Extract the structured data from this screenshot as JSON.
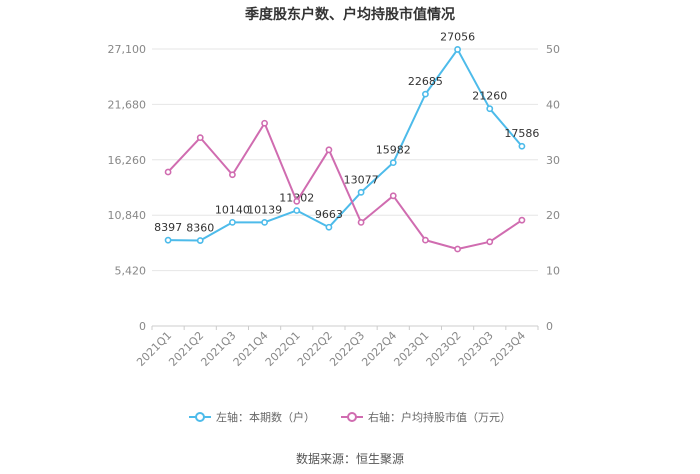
{
  "chart_data": {
    "type": "line",
    "title": "季度股东户数、户均持股市值情况",
    "categories": [
      "2021Q1",
      "2021Q2",
      "2021Q3",
      "2021Q4",
      "2022Q1",
      "2022Q2",
      "2022Q3",
      "2022Q4",
      "2023Q1",
      "2023Q2",
      "2023Q3",
      "2023Q4"
    ],
    "left_axis": {
      "ticks": [
        "0",
        "5,420",
        "10,840",
        "16,260",
        "21,680",
        "27,100"
      ],
      "ylim": [
        0,
        27100
      ]
    },
    "right_axis": {
      "ticks": [
        "0",
        "10",
        "20",
        "30",
        "40",
        "50"
      ],
      "ylim": [
        0,
        50
      ]
    },
    "series": [
      {
        "name": "左轴：本期数（户）",
        "axis": "left",
        "color": "#4dbbea",
        "values": [
          8397,
          8360,
          10140,
          10139,
          11302,
          9663,
          13077,
          15982,
          22685,
          27056,
          21260,
          17586
        ],
        "labels": [
          "8397",
          "8360",
          "10140",
          "10139",
          "11302",
          "9663",
          "13077",
          "15982",
          "22685",
          "27056",
          "21260",
          "17586"
        ]
      },
      {
        "name": "右轴：户均持股市值（万元）",
        "axis": "right",
        "color": "#d06cb0",
        "values": [
          27.8,
          34.0,
          27.3,
          36.6,
          22.5,
          31.8,
          18.7,
          23.5,
          15.5,
          13.9,
          15.2,
          19.1
        ]
      }
    ],
    "grid": true,
    "legend_position": "bottom"
  },
  "footer": {
    "source": "数据来源：恒生聚源"
  }
}
